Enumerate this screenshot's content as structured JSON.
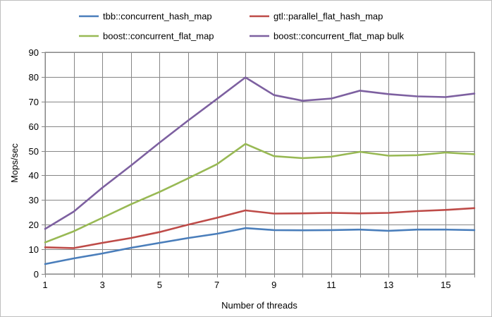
{
  "chart_data": {
    "type": "line",
    "title": "",
    "xlabel": "Number of threads",
    "ylabel": "Mops/sec",
    "xlim": [
      1,
      16
    ],
    "ylim": [
      0,
      90
    ],
    "x_ticks": [
      1,
      3,
      5,
      7,
      9,
      11,
      13,
      15
    ],
    "y_ticks": [
      0,
      10,
      20,
      30,
      40,
      50,
      60,
      70,
      80,
      90
    ],
    "grid": true,
    "legend_position": "top",
    "x": [
      1,
      2,
      3,
      4,
      5,
      6,
      7,
      8,
      9,
      10,
      11,
      12,
      13,
      14,
      15,
      16
    ],
    "series": [
      {
        "name": "tbb::concurrent_hash_map",
        "color": "#4a7ebb",
        "values": [
          4.0,
          6.3,
          8.3,
          10.6,
          12.6,
          14.6,
          16.3,
          18.6,
          17.8,
          17.7,
          17.8,
          18.0,
          17.5,
          18.0,
          18.0,
          17.8
        ]
      },
      {
        "name": "gtl::parallel_flat_hash_map",
        "color": "#be4b48",
        "values": [
          10.8,
          10.5,
          12.6,
          14.6,
          17.0,
          20.0,
          22.8,
          25.8,
          24.5,
          24.6,
          24.8,
          24.6,
          24.8,
          25.5,
          26.0,
          26.7
        ]
      },
      {
        "name": "boost::concurrent_flat_map",
        "color": "#98b954",
        "values": [
          12.8,
          17.3,
          22.8,
          28.3,
          33.3,
          38.8,
          44.5,
          52.8,
          47.8,
          47.0,
          47.6,
          49.6,
          48.0,
          48.2,
          49.3,
          48.6
        ]
      },
      {
        "name": "boost::concurrent_flat_map bulk",
        "color": "#7d60a0",
        "values": [
          18.3,
          25.3,
          35.0,
          44.0,
          53.3,
          62.3,
          71.0,
          79.8,
          72.6,
          70.3,
          71.2,
          74.4,
          73.0,
          72.1,
          71.8,
          73.2
        ]
      }
    ]
  }
}
